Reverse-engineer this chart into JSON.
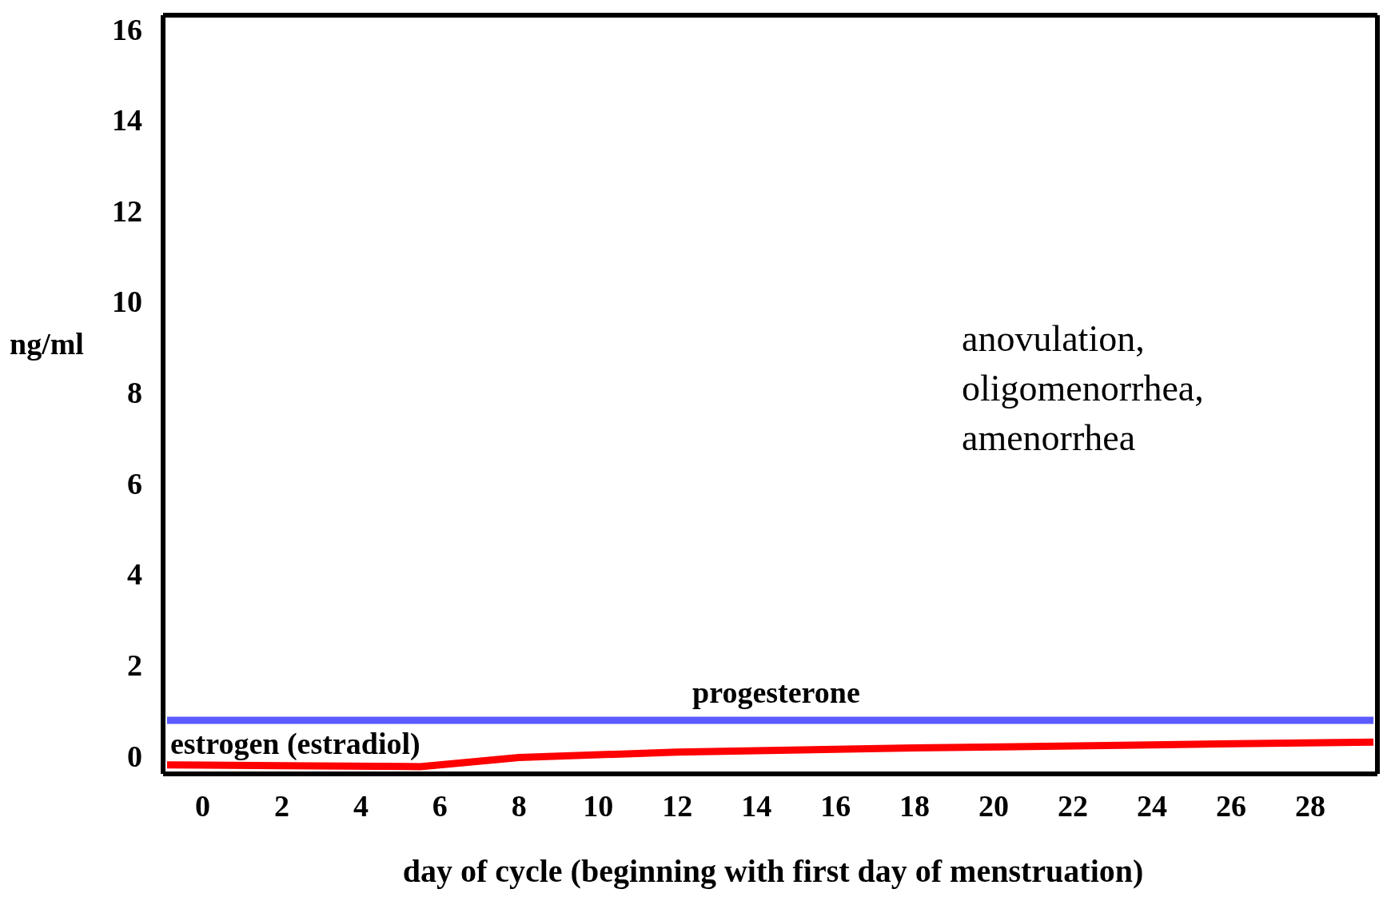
{
  "chart_data": {
    "type": "line",
    "ylabel": "ng/ml",
    "xlabel": "day of cycle (beginning with first day of menstruation)",
    "xlim": [
      -1,
      29.7
    ],
    "ylim": [
      -0.4,
      16.3
    ],
    "xticks": [
      0,
      2,
      4,
      6,
      8,
      10,
      12,
      14,
      16,
      18,
      20,
      22,
      24,
      26,
      28
    ],
    "yticks": [
      0,
      2,
      4,
      6,
      8,
      10,
      12,
      14,
      16
    ],
    "marker": "none",
    "line_style": "solid",
    "annotations": [
      "anovulation,\noligomenorrhea,\namenorrhea"
    ],
    "series": [
      {
        "name": "progesterone",
        "color": "#5b5bff",
        "x": [
          -0.9,
          14.5,
          29.6
        ],
        "values": [
          0.78,
          0.78,
          0.78
        ]
      },
      {
        "name": "estrogen (estradiol)",
        "color": "#ff0000",
        "x": [
          -0.9,
          2,
          5.5,
          8,
          12,
          18,
          24,
          29.6
        ],
        "values": [
          -0.2,
          -0.22,
          -0.24,
          -0.04,
          0.08,
          0.17,
          0.24,
          0.3
        ]
      }
    ]
  }
}
